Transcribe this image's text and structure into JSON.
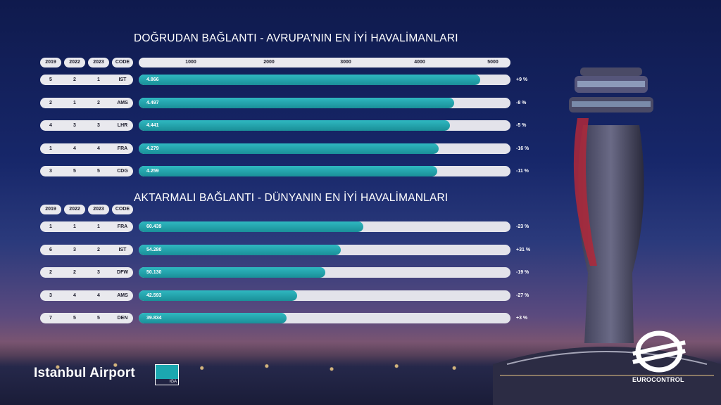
{
  "colors": {
    "bar_fill": "#1ba7b0",
    "track": "#e3e3ea",
    "header_pill": "#e9e9ee",
    "title_text": "#ffffff"
  },
  "chart_data": [
    {
      "type": "bar",
      "title": "DOĞRUDAN BAĞLANTI - AVRUPA'NIN EN İYİ HAVALİMANLARI",
      "columns": [
        "2019",
        "2022",
        "2023",
        "CODE"
      ],
      "xticks": [
        "1000",
        "2000",
        "3000",
        "4000",
        "5000"
      ],
      "xlim": [
        0,
        5300
      ],
      "rows": [
        {
          "r2019": "5",
          "r2022": "2",
          "r2023": "1",
          "code": "IST",
          "value": 4866,
          "label": "4.866",
          "change": "+9 %"
        },
        {
          "r2019": "2",
          "r2022": "1",
          "r2023": "2",
          "code": "AMS",
          "value": 4497,
          "label": "4.497",
          "change": "-8 %"
        },
        {
          "r2019": "4",
          "r2022": "3",
          "r2023": "3",
          "code": "LHR",
          "value": 4441,
          "label": "4.441",
          "change": "-5 %"
        },
        {
          "r2019": "1",
          "r2022": "4",
          "r2023": "4",
          "code": "FRA",
          "value": 4279,
          "label": "4.279",
          "change": "-16 %"
        },
        {
          "r2019": "3",
          "r2022": "5",
          "r2023": "5",
          "code": "CDG",
          "value": 4259,
          "label": "4.259",
          "change": "-11 %"
        }
      ]
    },
    {
      "type": "bar",
      "title": "AKTARMALI BAĞLANTI - DÜNYANIN EN İYİ HAVALİMANLARI",
      "columns": [
        "2019",
        "2022",
        "2023",
        "CODE"
      ],
      "xlim": [
        0,
        100000
      ],
      "rows": [
        {
          "r2019": "1",
          "r2022": "1",
          "r2023": "1",
          "code": "FRA",
          "value": 60439,
          "label": "60.439",
          "change": "-23 %"
        },
        {
          "r2019": "6",
          "r2022": "3",
          "r2023": "2",
          "code": "IST",
          "value": 54280,
          "label": "54.280",
          "change": "+31 %"
        },
        {
          "r2019": "2",
          "r2022": "2",
          "r2023": "3",
          "code": "DFW",
          "value": 50130,
          "label": "50.130",
          "change": "-19 %"
        },
        {
          "r2019": "3",
          "r2022": "4",
          "r2023": "4",
          "code": "AMS",
          "value": 42593,
          "label": "42.593",
          "change": "-27 %"
        },
        {
          "r2019": "7",
          "r2022": "5",
          "r2023": "5",
          "code": "DEN",
          "value": 39834,
          "label": "39.834",
          "change": "+3 %"
        }
      ]
    }
  ],
  "branding": {
    "istanbul_airport": "Istanbul Airport",
    "iga": "IGA",
    "eurocontrol": "EUROCONTROL"
  }
}
